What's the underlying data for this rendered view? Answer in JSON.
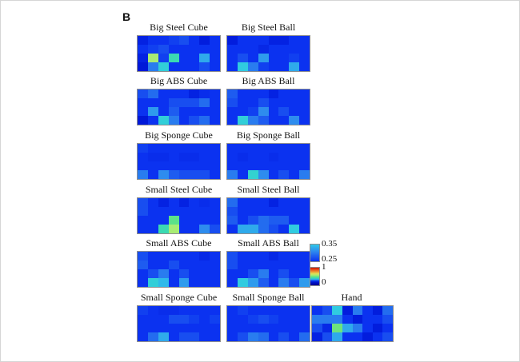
{
  "figure_label": "B",
  "colorbar": {
    "upper": {
      "top_label": "0.35",
      "bottom_label": "0.25",
      "range": [
        0.25,
        0.35
      ]
    },
    "lower": {
      "top_label": "1",
      "bottom_label": "0",
      "range": [
        0,
        1
      ]
    }
  },
  "colors": {
    "base_blue": "#0b32f0",
    "background": "#ffffff",
    "heatmap_border": "#8f8f8f",
    "colormap_stops": [
      [
        0.0,
        "#000090"
      ],
      [
        0.2,
        "#0018d8"
      ],
      [
        0.25,
        "#0b32f0"
      ],
      [
        0.28,
        "#1e5cf0"
      ],
      [
        0.31,
        "#2e8cee"
      ],
      [
        0.35,
        "#2fc8e8"
      ],
      [
        0.4,
        "#35d8c0"
      ],
      [
        0.45,
        "#44dc9c"
      ],
      [
        0.5,
        "#6ce47c"
      ],
      [
        0.57,
        "#a8ec74"
      ],
      [
        0.65,
        "#e0e858"
      ],
      [
        0.78,
        "#f09030"
      ],
      [
        0.9,
        "#e84818"
      ],
      [
        1.0,
        "#c81800"
      ]
    ]
  },
  "chart_data": {
    "type": "heatmap",
    "grid_rows": 4,
    "grid_cols": 8,
    "value_scale": "jet colormap position 0-1; colorbar zoom labels 0.25-0.35",
    "legend_position": "right, between Small ABS Ball and Hand rows",
    "panels": [
      {
        "title": "Big Steel Cube",
        "values": [
          [
            0.22,
            0.25,
            0.25,
            0.26,
            0.27,
            0.25,
            0.21,
            0.25
          ],
          [
            0.25,
            0.26,
            0.27,
            0.25,
            0.25,
            0.25,
            0.25,
            0.25
          ],
          [
            0.22,
            0.57,
            0.26,
            0.42,
            0.25,
            0.25,
            0.33,
            0.25
          ],
          [
            0.2,
            0.3,
            0.37,
            0.25,
            0.25,
            0.25,
            0.27,
            0.25
          ]
        ]
      },
      {
        "title": "Big Steel Ball",
        "values": [
          [
            0.21,
            0.25,
            0.25,
            0.25,
            0.22,
            0.22,
            0.25,
            0.25
          ],
          [
            0.25,
            0.25,
            0.25,
            0.23,
            0.25,
            0.25,
            0.25,
            0.25
          ],
          [
            0.25,
            0.27,
            0.25,
            0.32,
            0.25,
            0.25,
            0.26,
            0.25
          ],
          [
            0.25,
            0.36,
            0.3,
            0.26,
            0.25,
            0.25,
            0.33,
            0.25
          ]
        ]
      },
      {
        "title": "Big ABS Cube",
        "values": [
          [
            0.27,
            0.29,
            0.25,
            0.25,
            0.25,
            0.22,
            0.24,
            0.25
          ],
          [
            0.25,
            0.25,
            0.25,
            0.27,
            0.27,
            0.27,
            0.29,
            0.25
          ],
          [
            0.25,
            0.32,
            0.25,
            0.28,
            0.25,
            0.25,
            0.25,
            0.25
          ],
          [
            0.2,
            0.25,
            0.37,
            0.3,
            0.25,
            0.27,
            0.29,
            0.25
          ]
        ]
      },
      {
        "title": "Big ABS Ball",
        "values": [
          [
            0.28,
            0.25,
            0.25,
            0.25,
            0.22,
            0.25,
            0.25,
            0.25
          ],
          [
            0.27,
            0.25,
            0.25,
            0.27,
            0.25,
            0.25,
            0.25,
            0.25
          ],
          [
            0.25,
            0.25,
            0.26,
            0.31,
            0.25,
            0.27,
            0.25,
            0.25
          ],
          [
            0.25,
            0.37,
            0.3,
            0.28,
            0.25,
            0.25,
            0.31,
            0.25
          ]
        ]
      },
      {
        "title": "Big Sponge Cube",
        "values": [
          [
            0.26,
            0.25,
            0.25,
            0.25,
            0.25,
            0.25,
            0.25,
            0.25
          ],
          [
            0.25,
            0.24,
            0.24,
            0.25,
            0.24,
            0.24,
            0.25,
            0.25
          ],
          [
            0.25,
            0.25,
            0.25,
            0.25,
            0.25,
            0.25,
            0.25,
            0.25
          ],
          [
            0.3,
            0.25,
            0.31,
            0.28,
            0.27,
            0.27,
            0.27,
            0.25
          ]
        ]
      },
      {
        "title": "Big Sponge Ball",
        "values": [
          [
            0.25,
            0.25,
            0.25,
            0.25,
            0.25,
            0.25,
            0.25,
            0.25
          ],
          [
            0.25,
            0.24,
            0.25,
            0.25,
            0.24,
            0.25,
            0.25,
            0.25
          ],
          [
            0.25,
            0.25,
            0.25,
            0.25,
            0.25,
            0.25,
            0.25,
            0.25
          ],
          [
            0.3,
            0.25,
            0.38,
            0.31,
            0.25,
            0.27,
            0.25,
            0.3
          ]
        ]
      },
      {
        "title": "Small Steel Cube",
        "values": [
          [
            0.27,
            0.25,
            0.22,
            0.25,
            0.22,
            0.25,
            0.24,
            0.25
          ],
          [
            0.27,
            0.25,
            0.25,
            0.25,
            0.25,
            0.25,
            0.25,
            0.25
          ],
          [
            0.25,
            0.25,
            0.25,
            0.48,
            0.25,
            0.25,
            0.25,
            0.25
          ],
          [
            0.25,
            0.25,
            0.42,
            0.57,
            0.25,
            0.25,
            0.31,
            0.27
          ]
        ]
      },
      {
        "title": "Small Steel Ball",
        "values": [
          [
            0.29,
            0.25,
            0.25,
            0.25,
            0.22,
            0.25,
            0.25,
            0.25
          ],
          [
            0.27,
            0.25,
            0.25,
            0.25,
            0.25,
            0.25,
            0.25,
            0.25
          ],
          [
            0.28,
            0.25,
            0.27,
            0.29,
            0.28,
            0.28,
            0.25,
            0.25
          ],
          [
            0.25,
            0.33,
            0.33,
            0.29,
            0.27,
            0.25,
            0.36,
            0.25
          ]
        ]
      },
      {
        "title": "Small ABS Cube",
        "values": [
          [
            0.27,
            0.25,
            0.25,
            0.25,
            0.25,
            0.25,
            0.23,
            0.25
          ],
          [
            0.28,
            0.25,
            0.25,
            0.27,
            0.25,
            0.25,
            0.25,
            0.25
          ],
          [
            0.25,
            0.27,
            0.3,
            0.25,
            0.27,
            0.25,
            0.25,
            0.25
          ],
          [
            0.25,
            0.37,
            0.34,
            0.25,
            0.32,
            0.25,
            0.25,
            0.25
          ]
        ]
      },
      {
        "title": "Small ABS Ball",
        "values": [
          [
            0.27,
            0.25,
            0.25,
            0.25,
            0.23,
            0.25,
            0.25,
            0.25
          ],
          [
            0.27,
            0.25,
            0.25,
            0.25,
            0.25,
            0.25,
            0.25,
            0.25
          ],
          [
            0.25,
            0.25,
            0.27,
            0.3,
            0.25,
            0.27,
            0.25,
            0.25
          ],
          [
            0.25,
            0.36,
            0.32,
            0.28,
            0.25,
            0.3,
            0.27,
            0.32
          ]
        ]
      },
      {
        "title": "Small Sponge Cube",
        "values": [
          [
            0.26,
            0.25,
            0.24,
            0.24,
            0.25,
            0.25,
            0.25,
            0.25
          ],
          [
            0.25,
            0.25,
            0.25,
            0.27,
            0.27,
            0.26,
            0.25,
            0.26
          ],
          [
            0.25,
            0.25,
            0.25,
            0.25,
            0.25,
            0.25,
            0.25,
            0.25
          ],
          [
            0.25,
            0.29,
            0.33,
            0.25,
            0.27,
            0.27,
            0.25,
            0.25
          ]
        ]
      },
      {
        "title": "Small Sponge Ball",
        "values": [
          [
            0.25,
            0.26,
            0.25,
            0.25,
            0.25,
            0.25,
            0.25,
            0.25
          ],
          [
            0.25,
            0.25,
            0.26,
            0.27,
            0.26,
            0.25,
            0.25,
            0.25
          ],
          [
            0.25,
            0.25,
            0.25,
            0.25,
            0.25,
            0.25,
            0.25,
            0.25
          ],
          [
            0.25,
            0.27,
            0.3,
            0.29,
            0.25,
            0.27,
            0.25,
            0.29
          ]
        ]
      },
      {
        "title": "Hand",
        "values": [
          [
            0.25,
            0.27,
            0.36,
            0.21,
            0.3,
            0.25,
            0.21,
            0.29
          ],
          [
            0.3,
            0.3,
            0.3,
            0.25,
            0.21,
            0.25,
            0.25,
            0.27
          ],
          [
            0.27,
            0.23,
            0.5,
            0.33,
            0.3,
            0.25,
            0.21,
            0.25
          ],
          [
            0.22,
            0.27,
            0.33,
            0.25,
            0.25,
            0.21,
            0.25,
            0.27
          ]
        ]
      }
    ]
  }
}
